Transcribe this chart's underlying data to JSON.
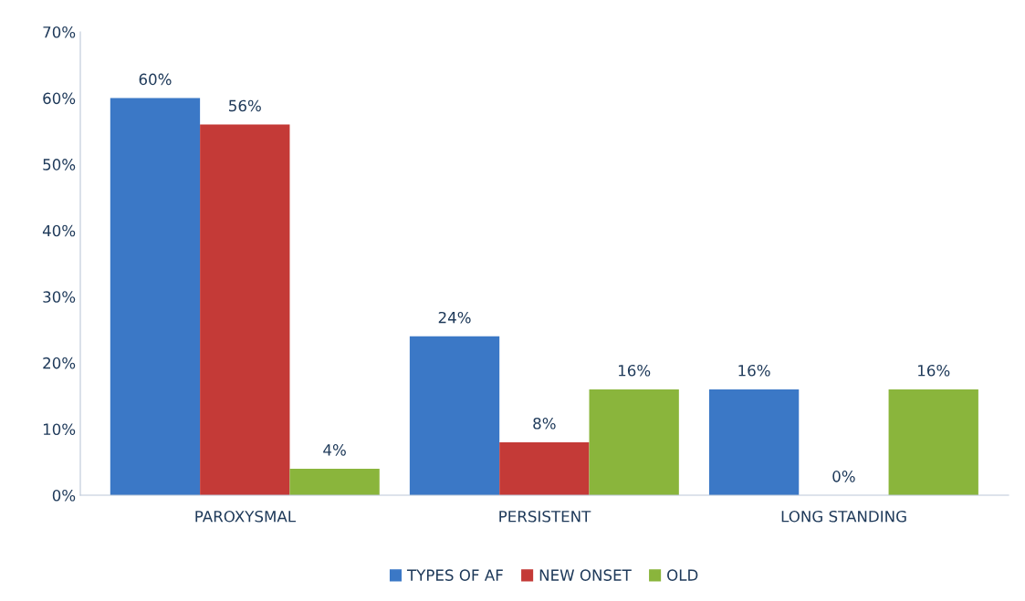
{
  "chart_data": {
    "type": "bar",
    "categories": [
      "PAROXYSMAL",
      "PERSISTENT",
      "LONG STANDING"
    ],
    "series": [
      {
        "name": "TYPES OF AF",
        "color": "#3b78c6",
        "values": [
          60,
          24,
          16
        ],
        "value_labels": [
          "60%",
          "24%",
          "16%"
        ]
      },
      {
        "name": "NEW ONSET",
        "color": "#c43a37",
        "values": [
          56,
          8,
          0
        ],
        "value_labels": [
          "56%",
          "8%",
          "0%"
        ]
      },
      {
        "name": "OLD",
        "color": "#8ab53c",
        "values": [
          4,
          16,
          16
        ],
        "value_labels": [
          "4%",
          "16%",
          "16%"
        ]
      }
    ],
    "ylim": [
      0,
      70
    ],
    "yticks": [
      {
        "value": 0,
        "label": "0%"
      },
      {
        "value": 10,
        "label": "10%"
      },
      {
        "value": 20,
        "label": "20%"
      },
      {
        "value": 30,
        "label": "30%"
      },
      {
        "value": 40,
        "label": "40%"
      },
      {
        "value": 50,
        "label": "50%"
      },
      {
        "value": 60,
        "label": "60%"
      },
      {
        "value": 70,
        "label": "70%"
      }
    ],
    "grid": false,
    "legend": "bottom"
  }
}
